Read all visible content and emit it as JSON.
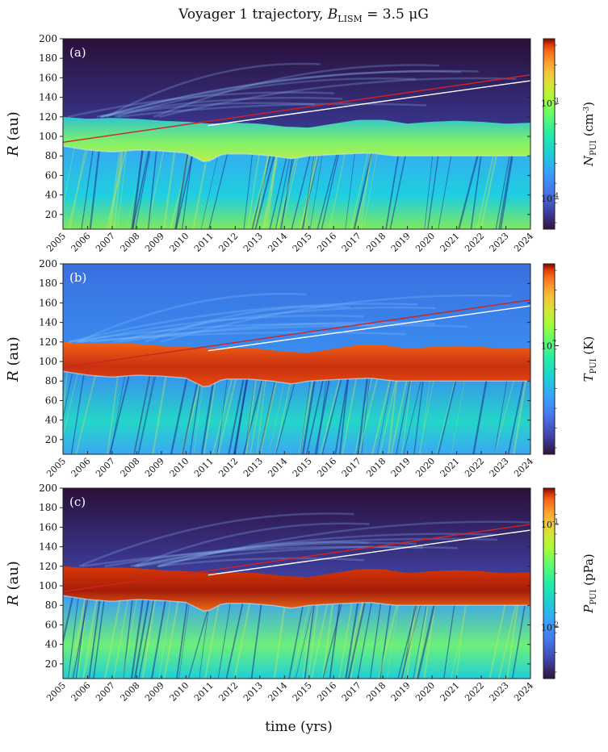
{
  "title": "Voyager 1 trajectory, B_LISM = 3.5 μG",
  "xlabel": "time (yrs)",
  "chart_data": {
    "type": "heatmap",
    "title": "Voyager 1 trajectory, B_LISM = 3.5 μG",
    "xlabel": "time (yrs)",
    "x_ticks": [
      "2005",
      "2006",
      "2007",
      "2008",
      "2009",
      "2010",
      "2011",
      "2012",
      "2013",
      "2014",
      "2015",
      "2016",
      "2017",
      "2018",
      "2019",
      "2020",
      "2021",
      "2022",
      "2023",
      "2024"
    ],
    "xlim": [
      2005,
      2024
    ],
    "panels": [
      {
        "panel_label": "(a)",
        "ylabel": "R (au)",
        "ylim": [
          5,
          200
        ],
        "y_ticks": [
          20,
          40,
          60,
          80,
          100,
          120,
          140,
          160,
          180,
          200
        ],
        "colorbar_label": "N_PUI (cm^-3)",
        "colorbar_ticks": [
          "10^-4",
          "10^-3"
        ],
        "colorscale": "turbo",
        "scale": "log"
      },
      {
        "panel_label": "(b)",
        "ylabel": "R (au)",
        "ylim": [
          5,
          200
        ],
        "y_ticks": [
          20,
          40,
          60,
          80,
          100,
          120,
          140,
          160,
          180,
          200
        ],
        "colorbar_label": "T_PUI (K)",
        "colorbar_ticks": [
          "10^7"
        ],
        "colorscale": "turbo",
        "scale": "log"
      },
      {
        "panel_label": "(c)",
        "ylabel": "R (au)",
        "ylim": [
          5,
          200
        ],
        "y_ticks": [
          20,
          40,
          60,
          80,
          100,
          120,
          140,
          160,
          180,
          200
        ],
        "colorbar_label": "P_PUI (pPa)",
        "colorbar_ticks": [
          "10^-2",
          "10^-1"
        ],
        "colorscale": "turbo",
        "scale": "log"
      }
    ],
    "overlay_lines": [
      {
        "color": "#d22222",
        "x": [
          2005,
          2024
        ],
        "y": [
          94,
          163
        ]
      },
      {
        "color": "#ffffff",
        "x": [
          2010.9,
          2024
        ],
        "y": [
          111,
          157
        ]
      }
    ],
    "termination_shock_au": [
      [
        2005,
        90
      ],
      [
        2006,
        86
      ],
      [
        2007,
        84
      ],
      [
        2008,
        86
      ],
      [
        2009,
        85
      ],
      [
        2010,
        83
      ],
      [
        2010.8,
        73
      ],
      [
        2011.5,
        82
      ],
      [
        2012.5,
        82
      ],
      [
        2013.5,
        80
      ],
      [
        2014.3,
        77
      ],
      [
        2015,
        80
      ],
      [
        2016.5,
        82
      ],
      [
        2017.5,
        83
      ],
      [
        2018.5,
        80
      ],
      [
        2019.5,
        80
      ],
      [
        2020.5,
        80
      ],
      [
        2022,
        80
      ],
      [
        2024,
        80
      ]
    ],
    "heliopause_au": [
      [
        2005,
        120
      ],
      [
        2006,
        118
      ],
      [
        2007,
        119
      ],
      [
        2008,
        118
      ],
      [
        2009,
        116
      ],
      [
        2010,
        115
      ],
      [
        2011,
        113
      ],
      [
        2012,
        114
      ],
      [
        2013,
        113
      ],
      [
        2014,
        110
      ],
      [
        2015,
        109
      ],
      [
        2016,
        113
      ],
      [
        2017,
        117
      ],
      [
        2018,
        117
      ],
      [
        2019,
        113
      ],
      [
        2020,
        115
      ],
      [
        2021,
        116
      ],
      [
        2022,
        115
      ],
      [
        2023,
        113
      ],
      [
        2024,
        114
      ]
    ]
  }
}
